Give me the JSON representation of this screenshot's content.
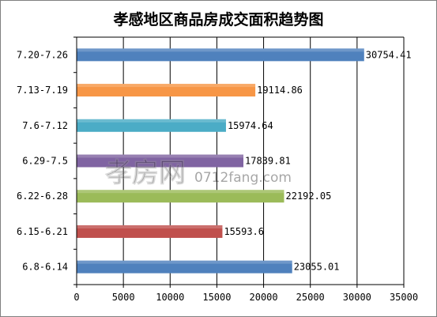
{
  "chart_data": {
    "type": "bar",
    "orientation": "horizontal",
    "title": "孝感地区商品房成交面积趋势图",
    "categories": [
      "7.20-7.26",
      "7.13-7.19",
      "7.6-7.12",
      "6.29-7.5",
      "6.22-6.28",
      "6.15-6.21",
      "6.8-6.14"
    ],
    "values": [
      30754.41,
      19114.86,
      15974.64,
      17839.81,
      22192.05,
      15593.6,
      23055.01
    ],
    "value_labels": [
      "30754.41",
      "19114.86",
      "15974.64",
      "17839.81",
      "22192.05",
      "15593.6",
      "23055.01"
    ],
    "colors": [
      "#4f81bd",
      "#f79646",
      "#4bacc6",
      "#8064a2",
      "#9bbb59",
      "#c0504d",
      "#4f81bd"
    ],
    "xlim": [
      0,
      35000
    ],
    "xticks": [
      "0",
      "5000",
      "10000",
      "15000",
      "20000",
      "25000",
      "30000",
      "35000"
    ],
    "grid": true,
    "legend": "none",
    "xlabel": "",
    "ylabel": ""
  },
  "watermark": {
    "logo_text": "孝房网",
    "domain_text": "0712fang.com"
  }
}
